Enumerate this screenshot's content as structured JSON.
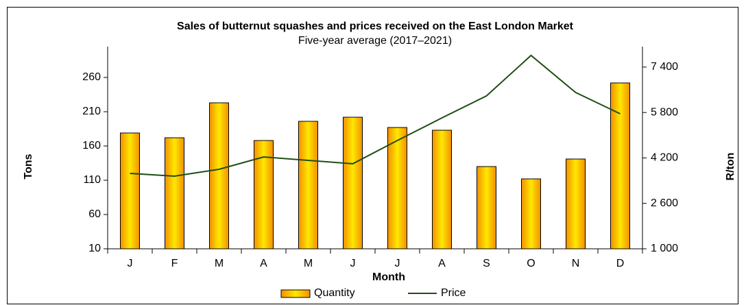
{
  "chart_data": {
    "type": "bar_line",
    "title": "Sales of butternut squashes and prices received on the East London Market",
    "subtitle": "Five-year average (2017–2021)",
    "x_label": "Month",
    "y_label": "Tons",
    "y2_label": "R/ton",
    "categories": [
      "J",
      "F",
      "M",
      "A",
      "M",
      "J",
      "J",
      "A",
      "S",
      "O",
      "N",
      "D"
    ],
    "series": [
      {
        "name": "Quantity",
        "type": "bar",
        "color": "#f5a000",
        "values": [
          179,
          172,
          223,
          168,
          196,
          202,
          187,
          183,
          130,
          112,
          141,
          252
        ]
      },
      {
        "name": "Price",
        "type": "line",
        "axis": "y2",
        "color": "#1e4d12",
        "values": [
          3655,
          3560,
          3800,
          4235,
          4115,
          3995,
          4815,
          5610,
          6385,
          7810,
          6505,
          5755
        ]
      }
    ],
    "ylim": [
      10,
      300
    ],
    "yticks": [
      10,
      60,
      110,
      160,
      210,
      260
    ],
    "y2lim": [
      1000,
      8000
    ],
    "y2ticks": [
      {
        "value": 1000,
        "label": "1 000"
      },
      {
        "value": 2600,
        "label": "2 600"
      },
      {
        "value": 4200,
        "label": "4 200"
      },
      {
        "value": 5800,
        "label": "5 800"
      },
      {
        "value": 7400,
        "label": "7 400"
      }
    ],
    "legend": "bottom"
  }
}
